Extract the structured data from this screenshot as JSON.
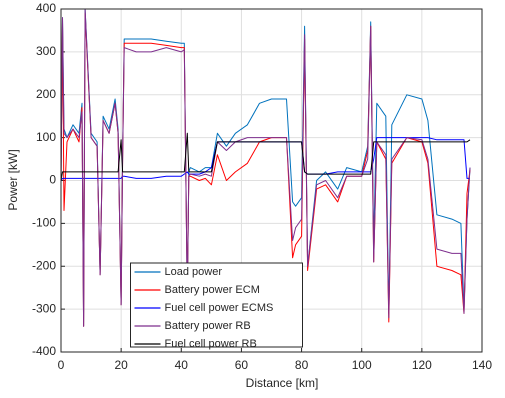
{
  "chart_data": {
    "type": "line",
    "xlabel": "Distance [km]",
    "ylabel": "Power [kW]",
    "xlim": [
      0,
      140
    ],
    "xticks": [
      0,
      20,
      40,
      60,
      80,
      100,
      120,
      140
    ],
    "ylim": [
      -400,
      400
    ],
    "yticks": [
      -400,
      -300,
      -200,
      -100,
      0,
      100,
      200,
      300,
      400
    ],
    "grid": true,
    "legend": "south",
    "x": [
      0,
      0.5,
      1,
      2,
      4,
      6,
      7,
      7.5,
      8,
      10,
      12,
      13,
      14,
      16,
      18,
      19,
      20,
      20.5,
      21,
      25,
      30,
      35,
      40,
      41,
      42,
      42.5,
      43,
      46,
      48,
      50,
      52,
      55,
      58,
      62,
      66,
      70,
      75,
      77,
      78,
      80,
      81,
      82,
      85,
      88,
      92,
      95,
      100,
      102,
      103,
      104,
      105,
      108,
      109,
      110,
      115,
      120,
      122,
      125,
      130,
      133,
      134,
      135,
      136
    ],
    "series": [
      {
        "name": "Load power",
        "color": "#0072bd",
        "values": [
          0,
          380,
          120,
          100,
          130,
          110,
          180,
          -340,
          400,
          110,
          90,
          -220,
          150,
          120,
          190,
          120,
          -290,
          60,
          330,
          330,
          330,
          325,
          320,
          320,
          -270,
          20,
          30,
          20,
          30,
          30,
          110,
          80,
          110,
          130,
          180,
          190,
          190,
          -50,
          -60,
          -40,
          360,
          -200,
          0,
          20,
          -20,
          30,
          20,
          80,
          370,
          -150,
          180,
          150,
          -310,
          130,
          200,
          190,
          140,
          -80,
          -90,
          -100,
          -300,
          -90,
          30
        ]
      },
      {
        "name": "Battery power ECM",
        "color": "#ff0000",
        "values": [
          0,
          370,
          -70,
          90,
          120,
          90,
          170,
          -340,
          390,
          100,
          80,
          -220,
          140,
          110,
          180,
          110,
          -290,
          50,
          320,
          320,
          320,
          315,
          310,
          310,
          -270,
          10,
          10,
          0,
          5,
          -10,
          60,
          0,
          20,
          40,
          90,
          100,
          100,
          -180,
          -150,
          -130,
          330,
          -210,
          -20,
          -10,
          -50,
          10,
          10,
          70,
          360,
          -190,
          90,
          50,
          -330,
          40,
          100,
          90,
          40,
          -200,
          -210,
          -220,
          -310,
          -30,
          25
        ]
      },
      {
        "name": "Fuel cell power ECMS",
        "color": "#0000ff",
        "values": [
          0,
          5,
          5,
          5,
          5,
          5,
          5,
          5,
          5,
          5,
          5,
          5,
          5,
          5,
          5,
          5,
          5,
          10,
          10,
          5,
          5,
          10,
          10,
          15,
          20,
          15,
          15,
          15,
          20,
          30,
          90,
          90,
          90,
          90,
          90,
          90,
          90,
          90,
          90,
          90,
          20,
          15,
          15,
          15,
          20,
          20,
          20,
          20,
          20,
          50,
          100,
          100,
          100,
          100,
          100,
          100,
          100,
          95,
          95,
          95,
          95,
          5,
          5
        ]
      },
      {
        "name": "Battery power RB",
        "color": "#7e2f8e",
        "values": [
          0,
          380,
          110,
          100,
          120,
          100,
          160,
          -340,
          400,
          100,
          80,
          -220,
          140,
          110,
          180,
          110,
          -290,
          50,
          310,
          300,
          300,
          310,
          300,
          305,
          -270,
          10,
          15,
          10,
          15,
          10,
          90,
          70,
          90,
          100,
          100,
          100,
          100,
          -140,
          -110,
          -90,
          340,
          -200,
          -10,
          0,
          -40,
          10,
          10,
          50,
          360,
          -190,
          90,
          60,
          -320,
          50,
          100,
          95,
          50,
          -160,
          -170,
          -170,
          -310,
          -90,
          30
        ]
      },
      {
        "name": "Fuel cell power RB",
        "color": "#000000",
        "values": [
          0,
          20,
          20,
          20,
          20,
          20,
          20,
          20,
          20,
          20,
          20,
          20,
          20,
          20,
          20,
          20,
          95,
          20,
          20,
          20,
          20,
          20,
          20,
          20,
          110,
          20,
          20,
          20,
          20,
          20,
          90,
          90,
          90,
          90,
          90,
          90,
          90,
          90,
          90,
          90,
          20,
          15,
          15,
          15,
          15,
          15,
          15,
          15,
          15,
          90,
          90,
          90,
          90,
          90,
          90,
          90,
          90,
          90,
          90,
          90,
          90,
          90,
          95
        ]
      }
    ]
  }
}
